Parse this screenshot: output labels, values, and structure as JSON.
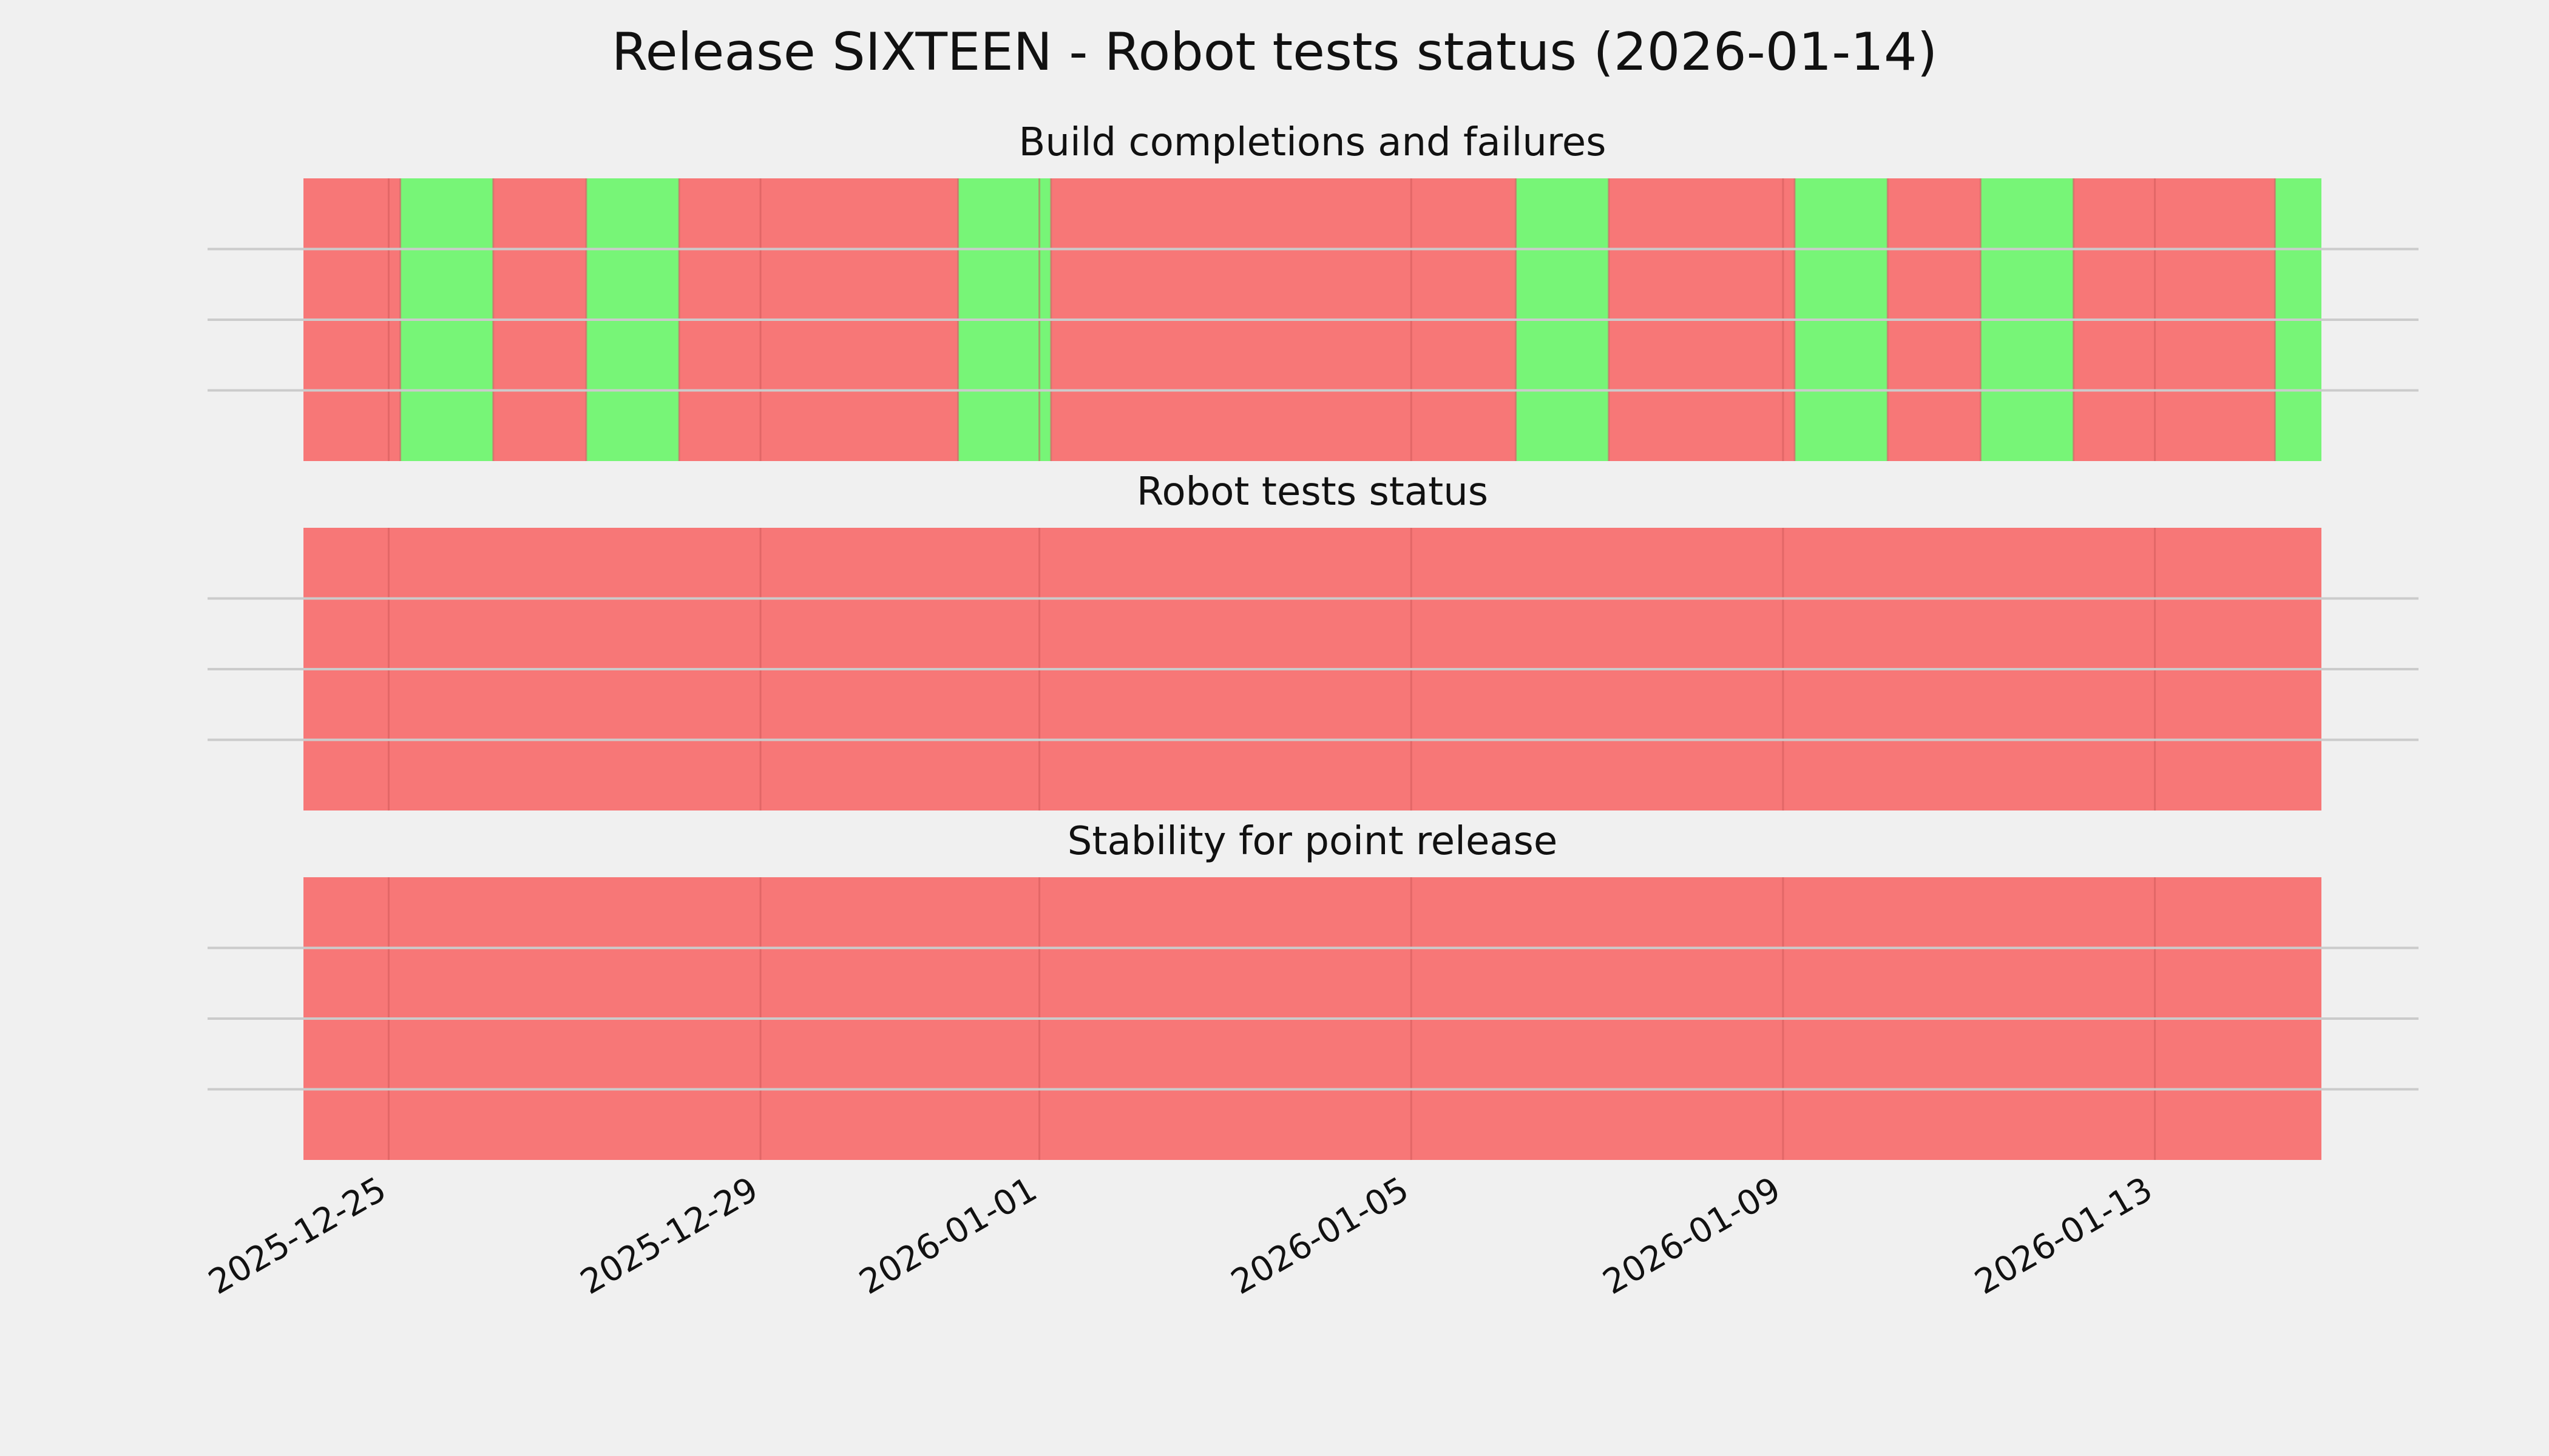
{
  "chart_data": {
    "type": "timeline",
    "title": "Release SIXTEEN - Robot tests status (2026-01-14)",
    "x_ticks": [
      "2025-12-25",
      "2025-12-29",
      "2026-01-01",
      "2026-01-05",
      "2026-01-09",
      "2026-01-13"
    ],
    "xlim": [
      "2025-12-24 02:00",
      "2026-01-14 19:00"
    ],
    "colors": {
      "pass": "#77f577",
      "fail": "#f77777"
    },
    "panels": [
      {
        "title": "Build completions and failures",
        "segments": [
          {
            "start": "2025-12-24 02:00",
            "end": "2025-12-25 03:00",
            "status": "fail"
          },
          {
            "start": "2025-12-25 03:00",
            "end": "2025-12-26 03:00",
            "status": "pass"
          },
          {
            "start": "2025-12-26 03:00",
            "end": "2025-12-27 03:00",
            "status": "fail"
          },
          {
            "start": "2025-12-27 03:00",
            "end": "2025-12-28 03:00",
            "status": "pass"
          },
          {
            "start": "2025-12-28 03:00",
            "end": "2025-12-31 03:00",
            "status": "fail"
          },
          {
            "start": "2025-12-31 03:00",
            "end": "2026-01-01 03:00",
            "status": "pass"
          },
          {
            "start": "2026-01-01 03:00",
            "end": "2026-01-06 03:00",
            "status": "fail"
          },
          {
            "start": "2026-01-06 03:00",
            "end": "2026-01-07 03:00",
            "status": "pass"
          },
          {
            "start": "2026-01-07 03:00",
            "end": "2026-01-09 03:00",
            "status": "fail"
          },
          {
            "start": "2026-01-09 03:00",
            "end": "2026-01-10 03:00",
            "status": "pass"
          },
          {
            "start": "2026-01-10 03:00",
            "end": "2026-01-11 03:00",
            "status": "fail"
          },
          {
            "start": "2026-01-11 03:00",
            "end": "2026-01-12 03:00",
            "status": "pass"
          },
          {
            "start": "2026-01-12 03:00",
            "end": "2026-01-14 07:00",
            "status": "fail"
          },
          {
            "start": "2026-01-14 07:00",
            "end": "2026-01-14 19:00",
            "status": "pass"
          }
        ]
      },
      {
        "title": "Robot tests status",
        "segments": [
          {
            "start": "2025-12-24 02:00",
            "end": "2026-01-14 19:00",
            "status": "fail"
          }
        ]
      },
      {
        "title": "Stability for point release",
        "segments": [
          {
            "start": "2025-12-24 02:00",
            "end": "2026-01-14 19:00",
            "status": "fail"
          }
        ]
      }
    ]
  }
}
